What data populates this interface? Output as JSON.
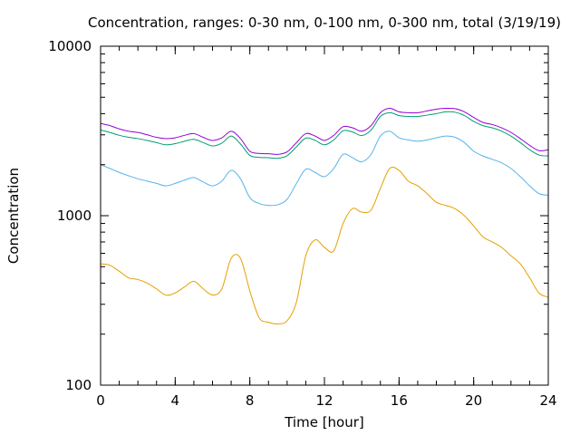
{
  "chart_data": {
    "type": "line",
    "title": "Concentration, ranges: 0-30 nm, 0-100 nm, 0-300 nm, total (3/19/19)",
    "xlabel": "Time [hour]",
    "ylabel": "Concentration",
    "xlim": [
      0,
      24
    ],
    "ylim": [
      100,
      10000
    ],
    "yscale": "log",
    "xticks": [
      0,
      4,
      8,
      12,
      16,
      20,
      24
    ],
    "xtick_labels": [
      "0",
      "4",
      "8",
      "12",
      "16",
      "20",
      "24"
    ],
    "yticks": [
      100,
      1000,
      10000
    ],
    "ytick_labels": [
      "100",
      "1000",
      "10000"
    ],
    "grid": false,
    "legend": "none",
    "x": [
      0,
      0.5,
      1,
      1.5,
      2,
      2.5,
      3,
      3.5,
      4,
      4.5,
      5,
      5.5,
      6,
      6.5,
      7,
      7.5,
      8,
      8.5,
      9,
      9.5,
      10,
      10.5,
      11,
      11.5,
      12,
      12.5,
      13,
      13.5,
      14,
      14.5,
      15,
      15.5,
      16,
      16.5,
      17,
      17.5,
      18,
      18.5,
      19,
      19.5,
      20,
      20.5,
      21,
      21.5,
      22,
      22.5,
      23,
      23.5,
      24
    ],
    "series": [
      {
        "color": "#e69f00",
        "values": [
          520,
          510,
          470,
          430,
          420,
          400,
          370,
          340,
          350,
          380,
          410,
          370,
          340,
          370,
          560,
          560,
          360,
          250,
          235,
          230,
          240,
          310,
          580,
          720,
          650,
          620,
          900,
          1100,
          1050,
          1080,
          1450,
          1900,
          1850,
          1600,
          1500,
          1350,
          1200,
          1150,
          1100,
          1000,
          870,
          750,
          700,
          650,
          580,
          520,
          430,
          350,
          330
        ]
      },
      {
        "color": "#56b4e9",
        "values": [
          2000,
          1900,
          1800,
          1720,
          1650,
          1600,
          1550,
          1500,
          1550,
          1620,
          1680,
          1580,
          1500,
          1600,
          1850,
          1650,
          1280,
          1180,
          1150,
          1160,
          1250,
          1550,
          1880,
          1800,
          1700,
          1900,
          2300,
          2200,
          2080,
          2300,
          2950,
          3150,
          2880,
          2800,
          2750,
          2800,
          2880,
          2950,
          2900,
          2700,
          2400,
          2250,
          2150,
          2050,
          1900,
          1700,
          1500,
          1350,
          1320
        ]
      },
      {
        "color": "#009e73",
        "values": [
          3200,
          3100,
          2980,
          2900,
          2850,
          2780,
          2700,
          2620,
          2660,
          2750,
          2820,
          2700,
          2580,
          2680,
          2950,
          2650,
          2270,
          2210,
          2200,
          2180,
          2260,
          2550,
          2870,
          2780,
          2620,
          2800,
          3170,
          3120,
          2970,
          3200,
          3850,
          4050,
          3900,
          3850,
          3850,
          3920,
          4000,
          4100,
          4080,
          3900,
          3600,
          3400,
          3300,
          3150,
          2950,
          2700,
          2450,
          2280,
          2250
        ]
      },
      {
        "color": "#9400d3",
        "values": [
          3500,
          3400,
          3250,
          3150,
          3100,
          3000,
          2900,
          2850,
          2880,
          2980,
          3050,
          2900,
          2780,
          2880,
          3150,
          2850,
          2400,
          2330,
          2320,
          2300,
          2380,
          2700,
          3050,
          2950,
          2780,
          2980,
          3350,
          3300,
          3150,
          3400,
          4050,
          4300,
          4100,
          4050,
          4050,
          4150,
          4250,
          4300,
          4280,
          4100,
          3800,
          3550,
          3450,
          3300,
          3100,
          2850,
          2600,
          2420,
          2450
        ]
      }
    ]
  }
}
